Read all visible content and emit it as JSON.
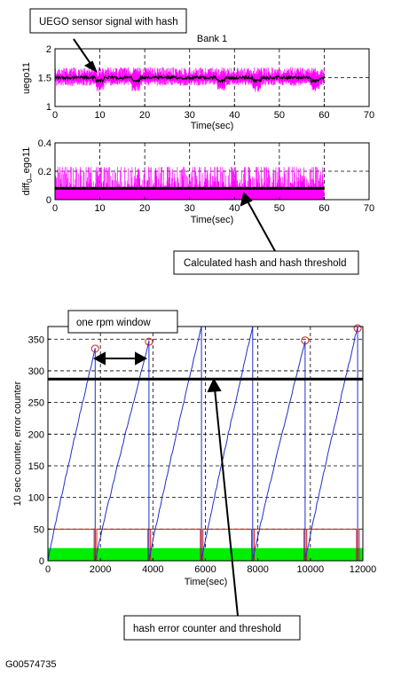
{
  "figure_id": "G00574735",
  "callouts": {
    "uego": "UEGO sensor signal with hash",
    "hash": "Calculated hash and hash threshold",
    "rpm": "one rpm window",
    "counter": "hash error counter and threshold"
  },
  "colors": {
    "magenta": "#ff00ff",
    "black": "#000000",
    "blue": "#2030c8",
    "red": "#d81818",
    "green": "#00ee00"
  },
  "chart_data": [
    {
      "type": "line",
      "title": "Bank 1",
      "xlabel": "Time(sec)",
      "ylabel": "uego11",
      "xlim": [
        0,
        70
      ],
      "ylim": [
        1,
        2
      ],
      "xticks": [
        "0",
        "10",
        "20",
        "30",
        "40",
        "50",
        "60",
        "70"
      ],
      "yticks": [
        "1",
        "1.5",
        "2"
      ],
      "grid": true,
      "series": [
        {
          "values": {
            "time_range": [
              0,
              60
            ],
            "mean": 1.5,
            "band": [
              1.36,
              1.68
            ],
            "dips_at": [
              10,
              18,
              37,
              45,
              58
            ]
          }
        }
      ]
    },
    {
      "type": "area",
      "xlabel": "Time(sec)",
      "ylabel": "diff_0_ego11",
      "ylabel_main": "diff",
      "ylabel_sub": "0",
      "ylabel_rest": "_ego11",
      "xlim": [
        0,
        70
      ],
      "ylim": [
        0,
        0.4
      ],
      "xticks": [
        "0",
        "10",
        "20",
        "30",
        "40",
        "50",
        "60",
        "70"
      ],
      "yticks": [
        "0",
        "0.2",
        "0.4"
      ],
      "grid": true,
      "series": [
        {
          "values": {
            "time_range": [
              0,
              60
            ],
            "hash_level_range": [
              0.02,
              0.22
            ]
          }
        },
        {
          "values": {
            "time_range": [
              0,
              60
            ],
            "threshold": 0.08
          }
        }
      ]
    },
    {
      "type": "line",
      "xlabel": "Time(sec)",
      "ylabel": "10 sec counter, error counter",
      "xlim": [
        0,
        12000
      ],
      "ylim": [
        0,
        370
      ],
      "xticks": [
        "0",
        "2000",
        "4000",
        "6000",
        "8000",
        "10000",
        "12000"
      ],
      "yticks": [
        "0",
        "50",
        "100",
        "150",
        "200",
        "250",
        "300",
        "350"
      ],
      "grid": true,
      "threshold": 287,
      "series": [
        {
          "values": {
            "ramps": [
              {
                "start": 0,
                "end": 1800,
                "peak": 335
              },
              {
                "start": 1800,
                "end": 3850,
                "peak": 346
              },
              {
                "start": 3850,
                "end": 5850,
                "peak": 370
              },
              {
                "start": 5850,
                "end": 7800,
                "peak": 370
              },
              {
                "start": 7800,
                "end": 9800,
                "peak": 348
              },
              {
                "start": 9800,
                "end": 11800,
                "peak": 370
              }
            ]
          }
        },
        {
          "values": {
            "level": 50,
            "spikes_at": [
              1800,
              3850,
              5850,
              7800,
              9800,
              11800
            ]
          }
        },
        {
          "values": {
            "level": 20
          }
        }
      ],
      "peak_markers": [
        {
          "x": 1800,
          "y": 335
        },
        {
          "x": 3850,
          "y": 346
        },
        {
          "x": 9800,
          "y": 348
        },
        {
          "x": 11800,
          "y": 370
        }
      ],
      "rpm_window": [
        1900,
        3700
      ]
    }
  ]
}
